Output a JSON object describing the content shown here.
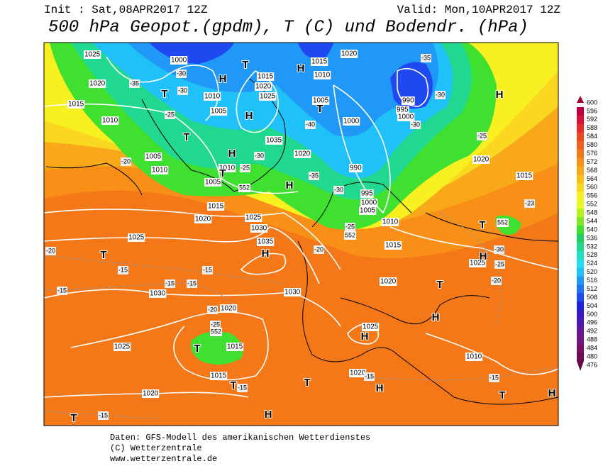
{
  "header": {
    "init": "Init : Sat,08APR2017 12Z",
    "valid": "Valid: Mon,10APR2017 12Z",
    "title": "500 hPa Geopot.(gpdm), T (C) und Bodendr. (hPa)"
  },
  "footer": [
    "Daten: GFS-Modell des amerikanischen Wetterdienstes",
    "(C) Wetterzentrale",
    "www.wetterzentrale.de"
  ],
  "color_scale": {
    "labels": [
      "600",
      "596",
      "592",
      "588",
      "584",
      "580",
      "576",
      "572",
      "568",
      "564",
      "560",
      "556",
      "552",
      "548",
      "544",
      "540",
      "536",
      "532",
      "528",
      "524",
      "520",
      "516",
      "512",
      "508",
      "504",
      "500",
      "496",
      "492",
      "488",
      "484",
      "480",
      "476"
    ],
    "colors": [
      "#a0002a",
      "#c0003c",
      "#d8103a",
      "#e62a2a",
      "#ec4620",
      "#f0601c",
      "#f47818",
      "#f89018",
      "#f8a818",
      "#fac018",
      "#fad820",
      "#f8f020",
      "#e8f820",
      "#b8f020",
      "#80e820",
      "#40e030",
      "#20d060",
      "#20d890",
      "#20e0c0",
      "#20e0f0",
      "#20c0f8",
      "#2098f8",
      "#2070f8",
      "#2048f0",
      "#2020e0",
      "#3a18c8",
      "#5018b0",
      "#641898",
      "#701880",
      "#781068",
      "#700858",
      "#600848"
    ]
  },
  "map": {
    "pressure_labels": [
      "1025",
      "1020",
      "1015",
      "1010",
      "1000",
      "1010",
      "1005",
      "1015",
      "1020",
      "1025",
      "1015",
      "1020",
      "1010",
      "1005",
      "1000",
      "990",
      "995",
      "1000",
      "1005",
      "1010",
      "1015",
      "1015",
      "1020",
      "1005",
      "1010",
      "1010",
      "1005",
      "1015",
      "1020",
      "1025",
      "1030",
      "1025",
      "1035",
      "1030",
      "1030",
      "1020",
      "1015",
      "1025",
      "1015",
      "1020",
      "1020",
      "1025",
      "1020",
      "1025",
      "1010",
      "990",
      "995",
      "1000",
      "1035",
      "1020"
    ],
    "temperature_labels": [
      "-35",
      "-30",
      "-30",
      "-25",
      "-20",
      "-25",
      "-30",
      "-40",
      "-35",
      "-30",
      "-25",
      "-20",
      "-35",
      "-30",
      "-30",
      "-25",
      "-23",
      "-30",
      "-25",
      "-20",
      "-20",
      "-15",
      "-15",
      "-15",
      "-15",
      "-15",
      "-20",
      "-25",
      "-15",
      "-15",
      "-15",
      "-15"
    ],
    "height_labels": [
      "552",
      "552",
      "552",
      "552"
    ],
    "centers": [
      "H",
      "T",
      "H",
      "T",
      "H",
      "T",
      "H",
      "T",
      "H",
      "T",
      "H",
      "T",
      "H",
      "T",
      "H",
      "T",
      "T",
      "T",
      "H",
      "T",
      "H",
      "H",
      "T",
      "H",
      "T",
      "H"
    ]
  }
}
